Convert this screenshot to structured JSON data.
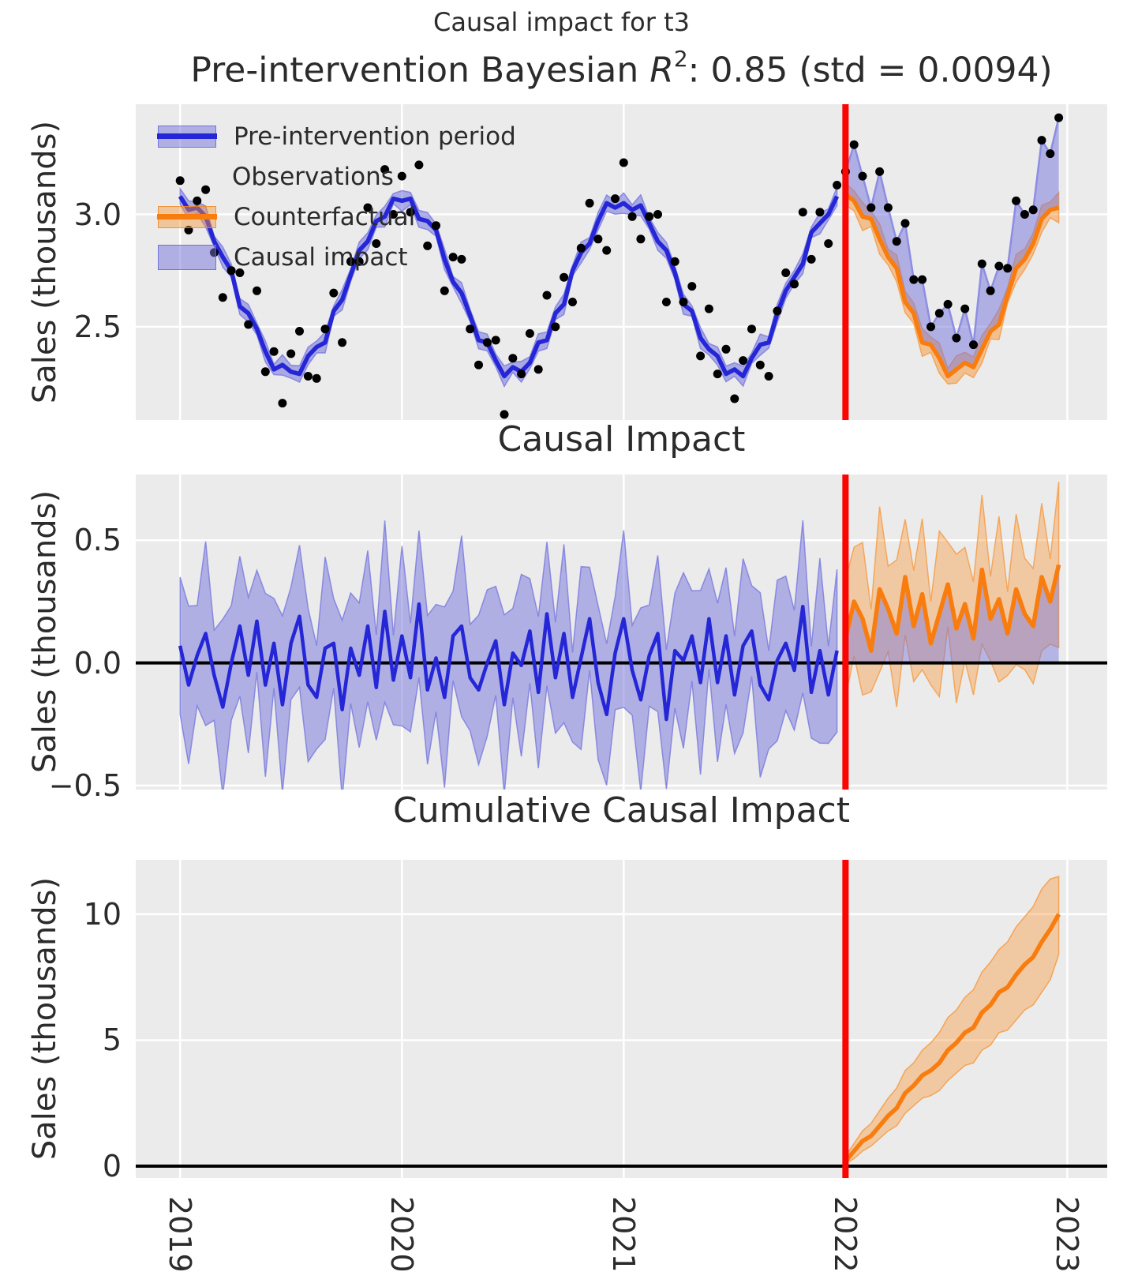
{
  "suptitle": "Causal impact for t3",
  "title": {
    "parts": [
      "Pre-intervention Bayesian ",
      "R",
      "2",
      ": 0.85 (std = 0.0094)"
    ]
  },
  "legend": {
    "items": [
      {
        "label": "Pre-intervention period",
        "handle": "blue-line-with-band"
      },
      {
        "label": "Observations",
        "handle": "none"
      },
      {
        "label": "Counterfactual",
        "handle": "orange-line-with-band"
      },
      {
        "label": "Causal impact",
        "handle": "blue-patch"
      }
    ]
  },
  "colors": {
    "pre_line": "#2526d6",
    "post_obs_line": "#8d8de4",
    "counterfactual": "#f97d0e",
    "band_blue": "#7373de",
    "band_orange": "#f79637",
    "observations": "#000000",
    "intervention_line": "#fb0404",
    "zero_line": "#000000",
    "panel_background": "#ebebeb",
    "grid": "#ffffff",
    "text": "#2b2b2b"
  },
  "chart_data": {
    "type": "line",
    "suptitle": "Causal impact for t3",
    "xlim": [
      2018.8,
      2023.18
    ],
    "x_start": 2019,
    "points_per_year": 26,
    "n_pre": 78,
    "n_post": 26,
    "intervention_x": 2022,
    "xticks": [
      {
        "v": 2019,
        "label": "2019"
      },
      {
        "v": 2020,
        "label": "2020"
      },
      {
        "v": 2021,
        "label": "2021"
      },
      {
        "v": 2022,
        "label": "2022"
      },
      {
        "v": 2023,
        "label": "2023"
      }
    ],
    "panels": [
      {
        "id": "pre-intervention",
        "title": "Pre-intervention Bayesian R2: 0.85 (std = 0.0094)",
        "ylabel": "Sales (thousands)",
        "ylim": [
          2.085,
          3.49
        ],
        "yticks": [
          {
            "v": 3.0,
            "label": "3.0"
          },
          {
            "v": 2.5,
            "label": "2.5"
          }
        ]
      },
      {
        "id": "causal-impact",
        "title": "Causal Impact",
        "ylabel": "Sales (thousands)",
        "ylim": [
          -0.516,
          0.768
        ],
        "yticks": [
          {
            "v": 0.5,
            "label": "0.5"
          },
          {
            "v": 0.0,
            "label": "0.0"
          },
          {
            "v": -0.5,
            "label": "−0.5"
          }
        ]
      },
      {
        "id": "cumulative-causal-impact",
        "title": "Cumulative Causal Impact",
        "ylabel": "Sales (thousands)",
        "ylim": [
          -0.47,
          12.16
        ],
        "yticks": [
          {
            "v": 10,
            "label": "10"
          },
          {
            "v": 5,
            "label": "5"
          },
          {
            "v": 0,
            "label": "0"
          }
        ]
      }
    ],
    "observations": [
      3.15,
      2.93,
      3.06,
      3.11,
      2.83,
      2.63,
      2.75,
      2.74,
      2.51,
      2.66,
      2.3,
      2.39,
      2.16,
      2.38,
      2.48,
      2.28,
      2.27,
      2.49,
      2.65,
      2.43,
      2.79,
      2.79,
      3.03,
      2.87,
      3.2,
      3.0,
      3.17,
      3.01,
      3.22,
      2.86,
      2.95,
      2.66,
      2.81,
      2.8,
      2.49,
      2.33,
      2.43,
      2.44,
      2.11,
      2.36,
      2.29,
      2.47,
      2.31,
      2.64,
      2.5,
      2.72,
      2.61,
      2.85,
      3.05,
      2.89,
      2.84,
      3.07,
      3.23,
      2.99,
      2.89,
      2.99,
      3.0,
      2.61,
      2.79,
      2.61,
      2.68,
      2.37,
      2.58,
      2.29,
      2.4,
      2.18,
      2.35,
      2.49,
      2.33,
      2.28,
      2.57,
      2.74,
      2.69,
      3.01,
      2.8,
      3.01,
      2.87,
      3.13,
      3.19,
      3.31,
      3.17,
      3.03,
      3.19,
      3.03,
      2.88,
      2.96,
      2.71,
      2.71,
      2.5,
      2.56,
      2.6,
      2.45,
      2.58,
      2.42,
      2.78,
      2.66,
      2.77,
      2.76,
      3.06,
      3.0,
      3.02,
      3.33,
      3.27,
      3.43
    ],
    "model_mean": [
      3.08,
      3.02,
      3.03,
      2.99,
      2.88,
      2.81,
      2.75,
      2.59,
      2.56,
      2.49,
      2.39,
      2.31,
      2.33,
      2.3,
      2.29,
      2.37,
      2.41,
      2.43,
      2.57,
      2.62,
      2.73,
      2.84,
      2.88,
      2.97,
      2.99,
      3.07,
      3.06,
      3.07,
      2.98,
      2.97,
      2.93,
      2.8,
      2.7,
      2.65,
      2.55,
      2.44,
      2.43,
      2.35,
      2.28,
      2.32,
      2.3,
      2.34,
      2.43,
      2.44,
      2.56,
      2.6,
      2.75,
      2.83,
      2.87,
      2.97,
      3.05,
      3.03,
      3.05,
      3.02,
      3.04,
      2.96,
      2.88,
      2.84,
      2.74,
      2.6,
      2.57,
      2.45,
      2.4,
      2.37,
      2.29,
      2.31,
      2.28,
      2.36,
      2.42,
      2.43,
      2.56,
      2.66,
      2.72,
      2.78,
      2.92,
      2.96,
      3.0,
      3.08,
      3.09,
      3.06,
      2.99,
      2.98,
      2.89,
      2.81,
      2.76,
      2.61,
      2.56,
      2.43,
      2.42,
      2.36,
      2.28,
      2.31,
      2.34,
      2.32,
      2.4,
      2.48,
      2.51,
      2.64,
      2.76,
      2.8,
      2.87,
      2.98,
      3.02,
      3.03
    ],
    "band_halfwidths": {
      "pre_fit": 0.035,
      "counterfactual": 0.05,
      "impact_pre": 0.28,
      "impact_post": 0.25
    },
    "cumulative": [
      0.2,
      0.6,
      1.0,
      1.2,
      1.6,
      2.0,
      2.3,
      2.9,
      3.2,
      3.6,
      3.8,
      4.1,
      4.6,
      4.9,
      5.3,
      5.5,
      6.1,
      6.4,
      6.9,
      7.1,
      7.6,
      8.0,
      8.3,
      8.9,
      9.4,
      10.0
    ],
    "cumulative_upper": [
      0.4,
      0.9,
      1.4,
      1.7,
      2.2,
      2.7,
      3.1,
      3.8,
      4.1,
      4.6,
      4.9,
      5.3,
      5.9,
      6.2,
      6.7,
      7.0,
      7.7,
      8.1,
      8.6,
      8.9,
      9.5,
      9.9,
      10.3,
      11.0,
      11.4,
      11.5
    ],
    "cumulative_lower": [
      0.1,
      0.3,
      0.6,
      0.8,
      1.1,
      1.4,
      1.6,
      2.1,
      2.4,
      2.7,
      2.8,
      3.0,
      3.4,
      3.7,
      4.0,
      4.1,
      4.6,
      4.8,
      5.3,
      5.4,
      5.8,
      6.2,
      6.4,
      6.9,
      7.4,
      8.4
    ]
  }
}
